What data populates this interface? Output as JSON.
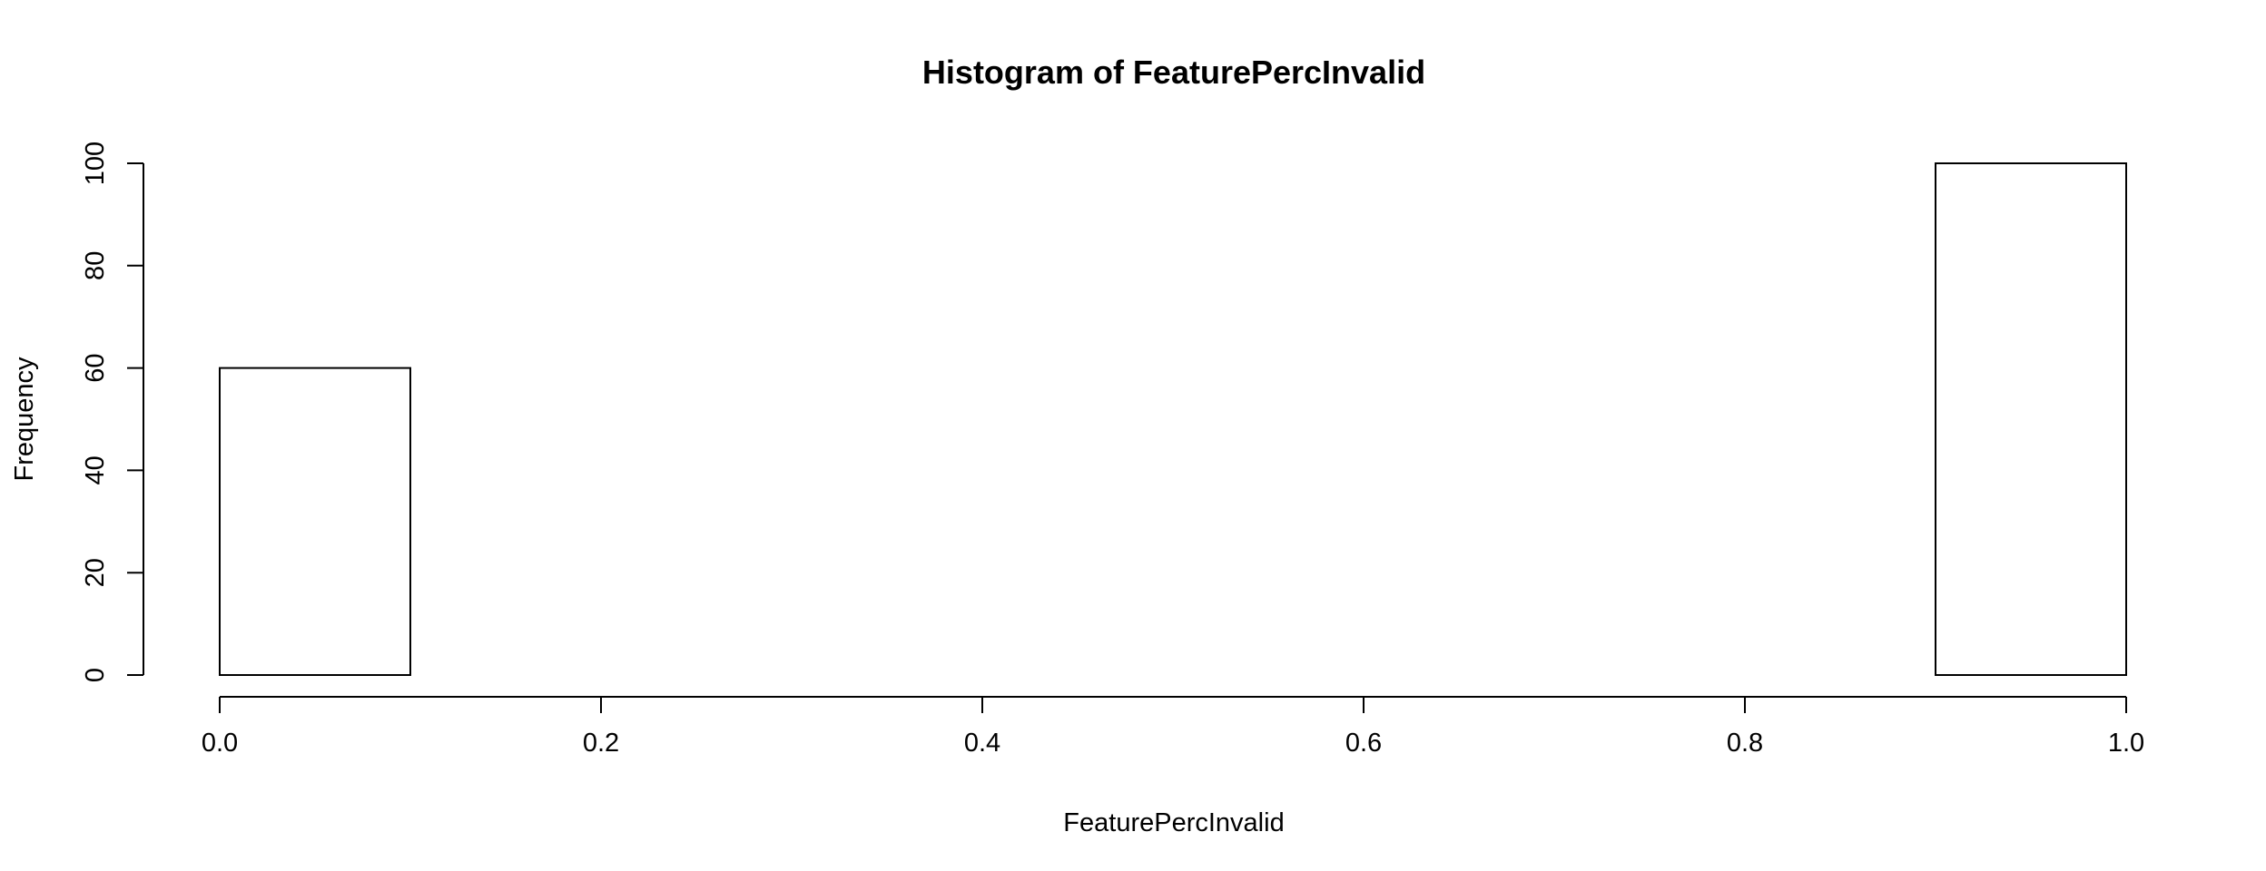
{
  "chart_data": {
    "type": "bar",
    "title": "Histogram of FeaturePercInvalid",
    "xlabel": "FeaturePercInvalid",
    "ylabel": "Frequency",
    "bin_edges": [
      0.0,
      0.1,
      0.2,
      0.3,
      0.4,
      0.5,
      0.6,
      0.7,
      0.8,
      0.9,
      1.0
    ],
    "values": [
      60,
      0,
      0,
      0,
      0,
      0,
      0,
      0,
      0,
      100
    ],
    "xlim": [
      0.0,
      1.0
    ],
    "ylim": [
      0,
      100
    ],
    "x_ticks": [
      0.0,
      0.2,
      0.4,
      0.6,
      0.8,
      1.0
    ],
    "x_tick_labels": [
      "0.0",
      "0.2",
      "0.4",
      "0.6",
      "0.8",
      "1.0"
    ],
    "y_ticks": [
      0,
      20,
      40,
      60,
      80,
      100
    ],
    "y_tick_labels": [
      "0",
      "20",
      "40",
      "60",
      "80",
      "100"
    ],
    "bar_fill": "#ffffff",
    "bar_stroke": "#000000",
    "grid": false
  }
}
